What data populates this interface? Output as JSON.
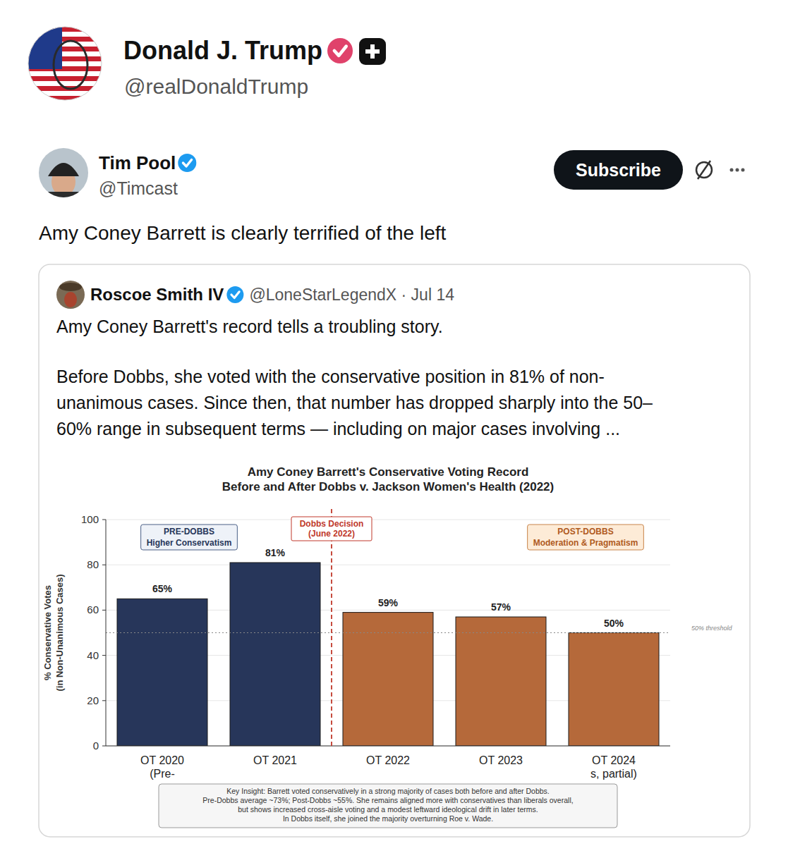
{
  "post": {
    "author": {
      "name": "Donald J. Trump",
      "handle": "@realDonaldTrump"
    },
    "repost": {
      "name": "Tim Pool",
      "handle": "@Timcast",
      "button": "Subscribe",
      "text": "Amy Coney Barrett is clearly terrified of the left"
    },
    "quote": {
      "name": "Roscoe Smith IV",
      "meta": "@LoneStarLegendX · Jul 14",
      "paragraphs": [
        [
          "Amy Coney Barrett's record tells a troubling story."
        ],
        [
          "Before Dobbs, she voted with the conservative position in 81% of non-",
          "unanimous cases. Since then, that number has dropped sharply into the 50–",
          "60% range in subsequent terms — including on major cases involving ..."
        ]
      ]
    }
  },
  "chart_data": {
    "type": "bar",
    "title": "Amy Coney Barrett's Conservative Voting Record",
    "subtitle": "Before and After Dobbs v. Jackson Women's Health (2022)",
    "ylabel": [
      "% Conservative Votes",
      "(in Non-Unanimous Cases)"
    ],
    "categories": [
      "OT 2020",
      "OT 2021",
      "OT 2022",
      "OT 2023",
      "OT 2024"
    ],
    "subcategories": [
      "(Pre-",
      null,
      null,
      null,
      "s, partial)"
    ],
    "values": [
      65,
      81,
      59,
      57,
      50
    ],
    "value_labels": [
      "65%",
      "81%",
      "59%",
      "57%",
      "50%"
    ],
    "colors": [
      "#27365a",
      "#27365a",
      "#b5693a",
      "#b5693a",
      "#b5693a"
    ],
    "ylim": [
      0,
      100
    ],
    "yticks": [
      0,
      20,
      40,
      60,
      80,
      100
    ],
    "grid": true,
    "data_labels": true,
    "threshold": {
      "value": 50,
      "label": "50% threshold"
    },
    "event": [
      "Dobbs Decision",
      "(June 2022)"
    ],
    "periods": [
      {
        "title": "PRE-DOBBS",
        "text": "Higher Conservatism"
      },
      {
        "title": "POST-DOBBS",
        "text": "Moderation & Pragmatism"
      }
    ],
    "note": [
      "Key Insight: Barrett voted conservatively in a strong majority of cases both before and after Dobbs.",
      "Pre-Dobbs average ~73%; Post-Dobbs ~55%. She remains aligned more with conservatives than liberals overall,",
      "but shows increased cross-aisle voting and a modest leftward ideological drift in later terms.",
      "In Dobbs itself, she joined the majority overturning Roe v. Wade."
    ]
  }
}
